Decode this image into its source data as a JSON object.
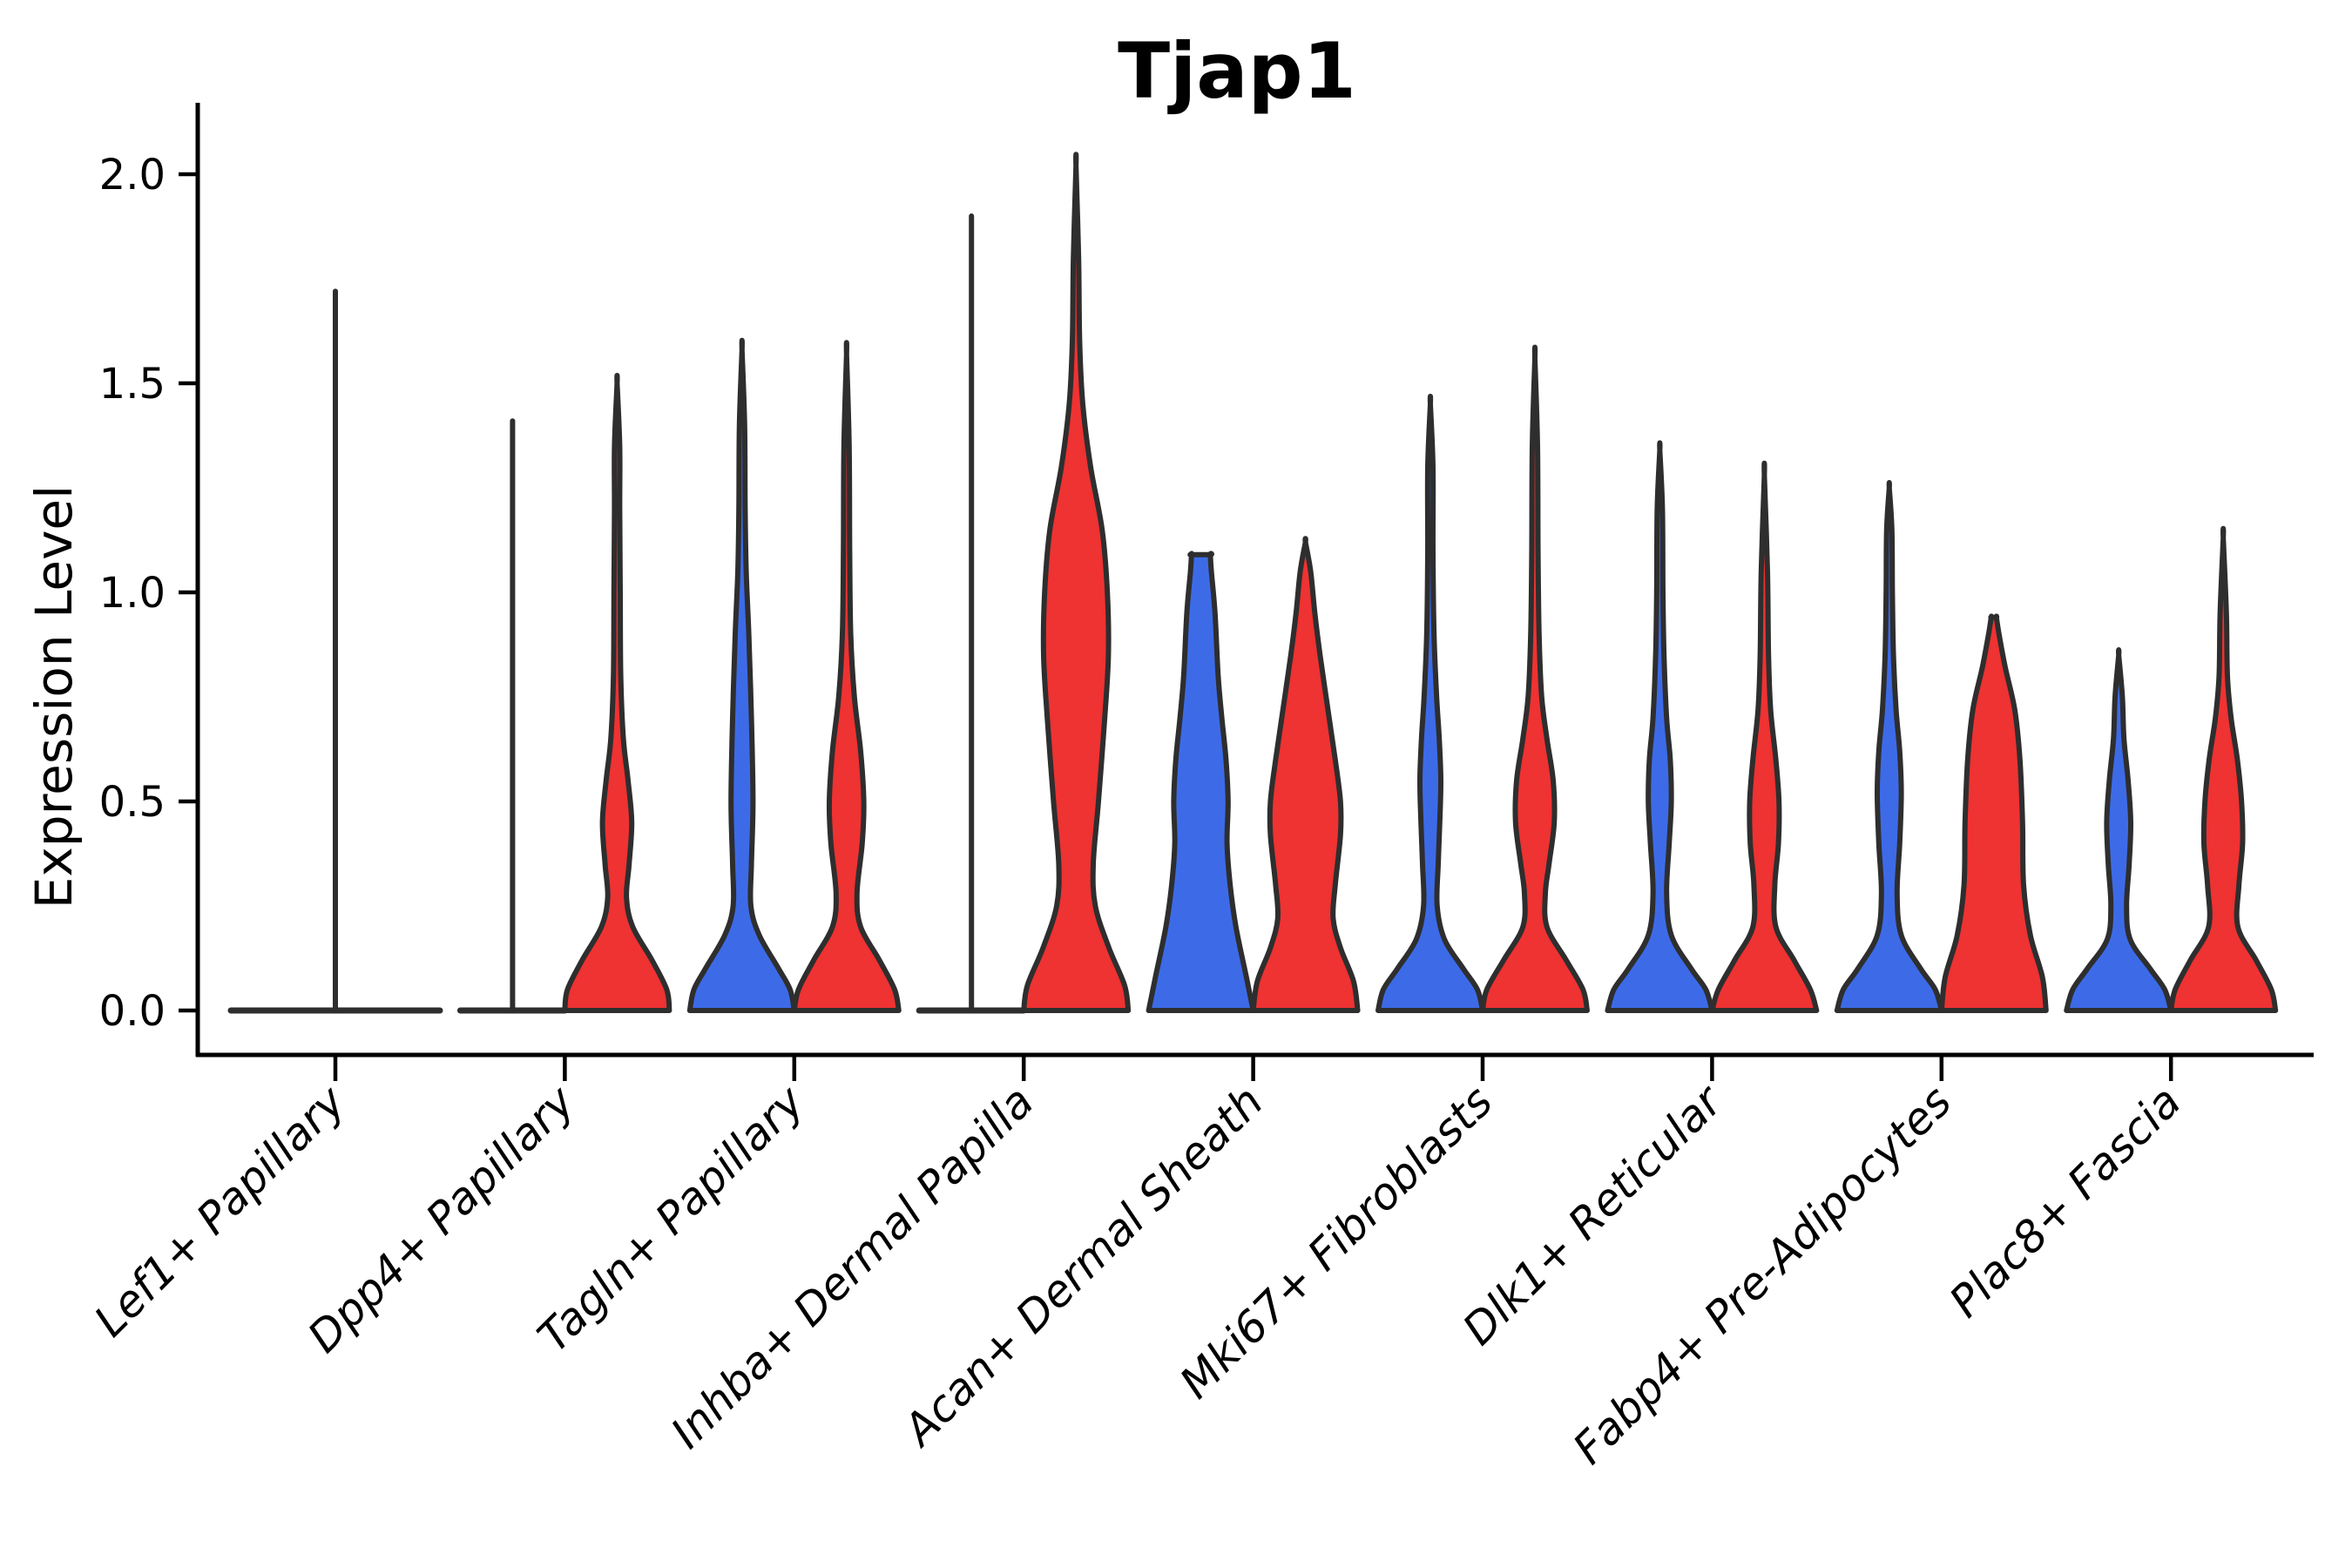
{
  "title": "Tjap1",
  "axes": {
    "ylabel": "Expression Level",
    "ylim": [
      0,
      2.1
    ],
    "yticks": [
      {
        "value": 0.0,
        "label": "0.0"
      },
      {
        "value": 0.5,
        "label": "0.5"
      },
      {
        "value": 1.0,
        "label": "1.0"
      },
      {
        "value": 1.5,
        "label": "1.5"
      },
      {
        "value": 2.0,
        "label": "2.0"
      }
    ]
  },
  "colors": {
    "blue": "#3D6BE8",
    "red": "#EF3232",
    "outline": "#2E2E2E",
    "text": "#000000",
    "background": "#FFFFFF"
  },
  "chart_data": {
    "type": "violin",
    "subtype": "split-grouped-violin",
    "title": "Tjap1",
    "ylabel": "Expression Level",
    "ylim": [
      0,
      2.1
    ],
    "yticks": [
      0.0,
      0.5,
      1.0,
      1.5,
      2.0
    ],
    "grid": false,
    "legend": "none",
    "categories": [
      "Lef1+ Papillary",
      "Dpp4+ Papillary",
      "Tagln+ Papillary",
      "Inhba+ Dermal Papilla",
      "Acan+ Dermal Sheath",
      "Mki67+ Fibroblasts",
      "Dlk1+ Reticular",
      "Fabp4+ Pre-Adipocytes",
      "Plac8+ Fascia"
    ],
    "series_colors": {
      "left": "#3D6BE8",
      "right": "#EF3232"
    },
    "max_expression": {
      "blue": [
        1.72,
        1.41,
        1.58,
        1.9,
        1.09,
        1.45,
        1.34,
        1.25,
        0.85
      ],
      "red": [
        null,
        1.5,
        1.57,
        2.02,
        1.12,
        1.56,
        1.28,
        0.94,
        1.13
      ]
    },
    "violins": [
      {
        "category": "Lef1+ Papillary",
        "single": {
          "type": "collapsed",
          "max": 1.72,
          "halfspan_units": 2
        },
        "blue": null,
        "red": null
      },
      {
        "category": "Dpp4+ Papillary",
        "blue": {
          "type": "collapsed",
          "max": 1.41
        },
        "red": {
          "type": "shaped",
          "max": 1.5,
          "profile": [
            [
              0,
              1
            ],
            [
              0.05,
              0.95
            ],
            [
              0.12,
              0.67
            ],
            [
              0.2,
              0.3
            ],
            [
              0.27,
              0.18
            ],
            [
              0.35,
              0.23
            ],
            [
              0.45,
              0.28
            ],
            [
              0.55,
              0.21
            ],
            [
              0.65,
              0.12
            ],
            [
              0.8,
              0.07
            ],
            [
              1.0,
              0.06
            ],
            [
              1.2,
              0.05
            ],
            [
              1.35,
              0.05
            ],
            [
              1.5,
              0
            ]
          ]
        }
      },
      {
        "category": "Tagln+ Papillary",
        "blue": {
          "type": "shaped",
          "max": 1.58,
          "profile": [
            [
              0,
              1
            ],
            [
              0.05,
              0.92
            ],
            [
              0.1,
              0.7
            ],
            [
              0.18,
              0.33
            ],
            [
              0.25,
              0.17
            ],
            [
              0.35,
              0.18
            ],
            [
              0.5,
              0.21
            ],
            [
              0.7,
              0.18
            ],
            [
              0.9,
              0.13
            ],
            [
              1.05,
              0.08
            ],
            [
              1.2,
              0.06
            ],
            [
              1.4,
              0.05
            ],
            [
              1.58,
              0
            ]
          ]
        },
        "red": {
          "type": "shaped",
          "max": 1.57,
          "profile": [
            [
              0,
              1
            ],
            [
              0.05,
              0.92
            ],
            [
              0.12,
              0.63
            ],
            [
              0.2,
              0.27
            ],
            [
              0.28,
              0.2
            ],
            [
              0.4,
              0.3
            ],
            [
              0.5,
              0.33
            ],
            [
              0.62,
              0.27
            ],
            [
              0.75,
              0.15
            ],
            [
              0.9,
              0.08
            ],
            [
              1.1,
              0.06
            ],
            [
              1.35,
              0.05
            ],
            [
              1.57,
              0
            ]
          ]
        }
      },
      {
        "category": "Inhba+ Dermal Papilla",
        "blue": {
          "type": "collapsed",
          "max": 1.9
        },
        "red": {
          "type": "shaped",
          "max": 2.02,
          "profile": [
            [
              0,
              1
            ],
            [
              0.06,
              0.93
            ],
            [
              0.15,
              0.63
            ],
            [
              0.25,
              0.37
            ],
            [
              0.35,
              0.33
            ],
            [
              0.5,
              0.43
            ],
            [
              0.7,
              0.55
            ],
            [
              0.85,
              0.62
            ],
            [
              1.0,
              0.6
            ],
            [
              1.15,
              0.5
            ],
            [
              1.3,
              0.28
            ],
            [
              1.45,
              0.13
            ],
            [
              1.6,
              0.07
            ],
            [
              1.8,
              0.05
            ],
            [
              2.02,
              0
            ]
          ]
        }
      },
      {
        "category": "Acan+ Dermal Sheath",
        "blue": {
          "type": "shaped",
          "max": 1.09,
          "capped": true,
          "profile": [
            [
              0,
              1
            ],
            [
              0.08,
              0.87
            ],
            [
              0.2,
              0.67
            ],
            [
              0.3,
              0.56
            ],
            [
              0.4,
              0.5
            ],
            [
              0.5,
              0.52
            ],
            [
              0.6,
              0.48
            ],
            [
              0.7,
              0.4
            ],
            [
              0.8,
              0.33
            ],
            [
              0.95,
              0.27
            ],
            [
              1.05,
              0.2
            ],
            [
              1.09,
              0.18
            ]
          ]
        },
        "red": {
          "type": "shaped",
          "max": 1.12,
          "profile": [
            [
              0,
              1
            ],
            [
              0.07,
              0.92
            ],
            [
              0.15,
              0.67
            ],
            [
              0.22,
              0.53
            ],
            [
              0.3,
              0.57
            ],
            [
              0.42,
              0.67
            ],
            [
              0.5,
              0.67
            ],
            [
              0.6,
              0.57
            ],
            [
              0.72,
              0.43
            ],
            [
              0.85,
              0.28
            ],
            [
              0.95,
              0.18
            ],
            [
              1.05,
              0.1
            ],
            [
              1.12,
              0
            ]
          ]
        }
      },
      {
        "category": "Mki67+ Fibroblasts",
        "blue": {
          "type": "shaped",
          "max": 1.45,
          "profile": [
            [
              0,
              1
            ],
            [
              0.05,
              0.9
            ],
            [
              0.1,
              0.63
            ],
            [
              0.17,
              0.27
            ],
            [
              0.25,
              0.13
            ],
            [
              0.35,
              0.15
            ],
            [
              0.45,
              0.18
            ],
            [
              0.55,
              0.2
            ],
            [
              0.65,
              0.17
            ],
            [
              0.75,
              0.12
            ],
            [
              0.9,
              0.07
            ],
            [
              1.1,
              0.05
            ],
            [
              1.3,
              0.05
            ],
            [
              1.45,
              0
            ]
          ]
        },
        "red": {
          "type": "shaped",
          "max": 1.56,
          "profile": [
            [
              0,
              1
            ],
            [
              0.05,
              0.92
            ],
            [
              0.12,
              0.6
            ],
            [
              0.2,
              0.23
            ],
            [
              0.28,
              0.2
            ],
            [
              0.35,
              0.27
            ],
            [
              0.45,
              0.37
            ],
            [
              0.55,
              0.35
            ],
            [
              0.65,
              0.23
            ],
            [
              0.75,
              0.13
            ],
            [
              0.9,
              0.08
            ],
            [
              1.1,
              0.06
            ],
            [
              1.35,
              0.05
            ],
            [
              1.56,
              0
            ]
          ]
        }
      },
      {
        "category": "Dlk1+ Reticular",
        "blue": {
          "type": "shaped",
          "max": 1.34,
          "profile": [
            [
              0,
              1
            ],
            [
              0.05,
              0.88
            ],
            [
              0.1,
              0.6
            ],
            [
              0.18,
              0.22
            ],
            [
              0.28,
              0.13
            ],
            [
              0.4,
              0.18
            ],
            [
              0.5,
              0.22
            ],
            [
              0.6,
              0.2
            ],
            [
              0.7,
              0.13
            ],
            [
              0.85,
              0.08
            ],
            [
              1.0,
              0.06
            ],
            [
              1.2,
              0.05
            ],
            [
              1.34,
              0
            ]
          ]
        },
        "red": {
          "type": "shaped",
          "max": 1.28,
          "profile": [
            [
              0,
              1
            ],
            [
              0.05,
              0.88
            ],
            [
              0.12,
              0.57
            ],
            [
              0.2,
              0.22
            ],
            [
              0.3,
              0.2
            ],
            [
              0.4,
              0.27
            ],
            [
              0.5,
              0.28
            ],
            [
              0.6,
              0.22
            ],
            [
              0.72,
              0.12
            ],
            [
              0.85,
              0.08
            ],
            [
              1.05,
              0.06
            ],
            [
              1.28,
              0
            ]
          ]
        }
      },
      {
        "category": "Fabp4+ Pre-Adipocytes",
        "blue": {
          "type": "shaped",
          "max": 1.25,
          "profile": [
            [
              0,
              1
            ],
            [
              0.05,
              0.88
            ],
            [
              0.1,
              0.6
            ],
            [
              0.18,
              0.23
            ],
            [
              0.28,
              0.15
            ],
            [
              0.4,
              0.2
            ],
            [
              0.52,
              0.23
            ],
            [
              0.62,
              0.2
            ],
            [
              0.72,
              0.13
            ],
            [
              0.85,
              0.08
            ],
            [
              1.0,
              0.06
            ],
            [
              1.15,
              0.05
            ],
            [
              1.25,
              0
            ]
          ]
        },
        "red": {
          "type": "shaped",
          "max": 0.94,
          "capped": true,
          "profile": [
            [
              0,
              1
            ],
            [
              0.08,
              0.93
            ],
            [
              0.18,
              0.7
            ],
            [
              0.3,
              0.57
            ],
            [
              0.45,
              0.55
            ],
            [
              0.6,
              0.5
            ],
            [
              0.72,
              0.4
            ],
            [
              0.82,
              0.22
            ],
            [
              0.9,
              0.1
            ],
            [
              0.94,
              0.05
            ]
          ]
        }
      },
      {
        "category": "Plac8+ Fascia",
        "blue": {
          "type": "shaped",
          "max": 0.85,
          "profile": [
            [
              0,
              1
            ],
            [
              0.05,
              0.88
            ],
            [
              0.1,
              0.6
            ],
            [
              0.17,
              0.22
            ],
            [
              0.25,
              0.15
            ],
            [
              0.35,
              0.2
            ],
            [
              0.45,
              0.23
            ],
            [
              0.55,
              0.18
            ],
            [
              0.65,
              0.1
            ],
            [
              0.75,
              0.07
            ],
            [
              0.85,
              0
            ]
          ]
        },
        "red": {
          "type": "shaped",
          "max": 1.13,
          "profile": [
            [
              0,
              1
            ],
            [
              0.05,
              0.92
            ],
            [
              0.12,
              0.63
            ],
            [
              0.2,
              0.28
            ],
            [
              0.3,
              0.3
            ],
            [
              0.4,
              0.37
            ],
            [
              0.5,
              0.35
            ],
            [
              0.6,
              0.27
            ],
            [
              0.7,
              0.15
            ],
            [
              0.8,
              0.08
            ],
            [
              0.95,
              0.06
            ],
            [
              1.13,
              0
            ]
          ]
        }
      }
    ]
  }
}
